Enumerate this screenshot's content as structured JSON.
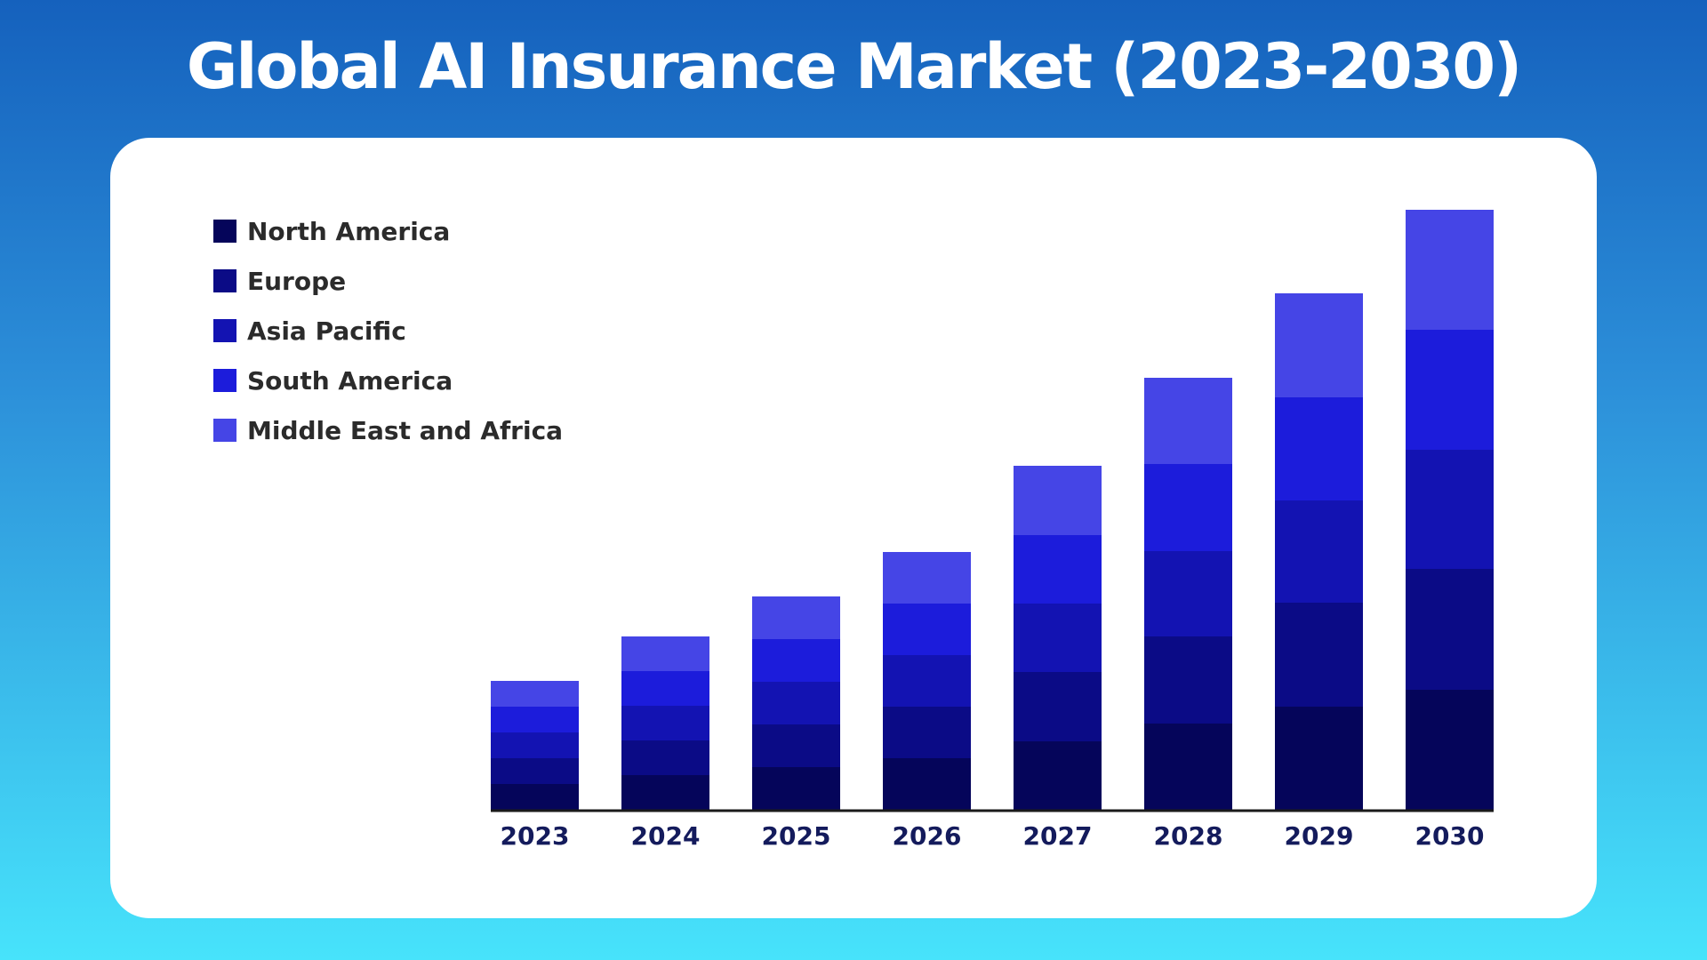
{
  "chart_data": {
    "type": "bar",
    "stacked": true,
    "title": "Global AI Insurance Market (2023-2030)",
    "categories": [
      "2023",
      "2024",
      "2025",
      "2026",
      "2027",
      "2028",
      "2029",
      "2030"
    ],
    "series": [
      {
        "name": "North America",
        "color": "#05055a",
        "values": [
          29,
          39,
          48,
          58,
          77,
          97,
          116,
          135
        ]
      },
      {
        "name": "Europe",
        "color": "#0b0b86",
        "values": [
          29,
          39,
          48,
          58,
          78,
          98,
          117,
          136
        ]
      },
      {
        "name": "Asia Pacific",
        "color": "#1313b2",
        "values": [
          29,
          39,
          48,
          58,
          77,
          96,
          115,
          134
        ]
      },
      {
        "name": "South America",
        "color": "#1c1cdb",
        "values": [
          29,
          39,
          48,
          58,
          77,
          98,
          116,
          135
        ]
      },
      {
        "name": "Middle East and Africa",
        "color": "#4545e6",
        "values": [
          29,
          39,
          48,
          58,
          78,
          97,
          117,
          135
        ]
      }
    ],
    "ylim": [
      0,
      675
    ],
    "grid": false,
    "legend": "top-left",
    "xlabel": "",
    "ylabel": ""
  }
}
